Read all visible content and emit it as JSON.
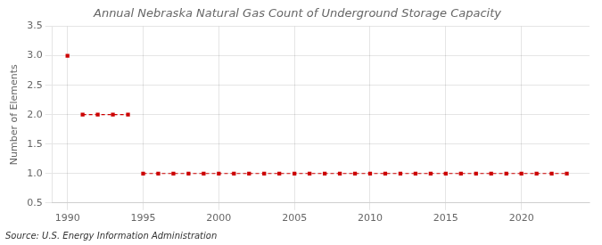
{
  "chart_data": {
    "type": "line",
    "title": "Annual Nebraska Natural Gas Count of Underground Storage Capacity",
    "y_label": "Number of Elements",
    "annotations": [
      "Source: U.S. Energy Information Administration"
    ],
    "x": [
      1990,
      1991,
      1992,
      1993,
      1994,
      1995,
      1996,
      1997,
      1998,
      1999,
      2000,
      2001,
      2002,
      2003,
      2004,
      2005,
      2006,
      2007,
      2008,
      2009,
      2010,
      2011,
      2012,
      2013,
      2014,
      2015,
      2016,
      2017,
      2018,
      2019,
      2020,
      2021,
      2022,
      2023
    ],
    "values": [
      3,
      2,
      2,
      2,
      2,
      1,
      1,
      1,
      1,
      1,
      1,
      1,
      1,
      1,
      1,
      1,
      1,
      1,
      1,
      1,
      1,
      1,
      1,
      1,
      1,
      1,
      1,
      1,
      1,
      1,
      1,
      1,
      1,
      1
    ],
    "color": "#cc0000",
    "marker": "square",
    "line_style": "dashed",
    "xlim": [
      1989,
      2024.5
    ],
    "xticks": [
      1990,
      1995,
      2000,
      2005,
      2010,
      2015,
      2020
    ],
    "ylim": [
      0.5,
      3.5
    ],
    "yticks": [
      0.5,
      {
        "value": 1.0,
        "label": "1.0"
      },
      1.5,
      {
        "value": 2.0,
        "label": "2.0"
      },
      2.5,
      {
        "value": 3.0,
        "label": "3.0"
      },
      3.5
    ],
    "grid": true
  }
}
